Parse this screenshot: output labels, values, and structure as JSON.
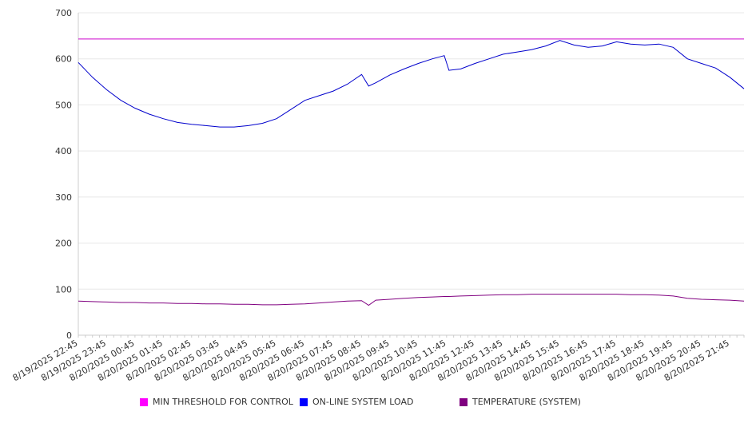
{
  "chart_data": {
    "type": "line",
    "title": "",
    "xlabel": "",
    "ylabel": "",
    "ylim": [
      0,
      700
    ],
    "yticks": [
      0,
      100,
      200,
      300,
      400,
      500,
      600,
      700
    ],
    "grid": true,
    "legend_position": "bottom",
    "x_tick_labels": [
      "8/19/2025 22:45",
      "8/19/2025 23:45",
      "8/20/2025 00:45",
      "8/20/2025 01:45",
      "8/20/2025 02:45",
      "8/20/2025 03:45",
      "8/20/2025 04:45",
      "8/20/2025 05:45",
      "8/20/2025 06:45",
      "8/20/2025 07:45",
      "8/20/2025 08:45",
      "8/20/2025 09:45",
      "8/20/2025 10:45",
      "8/20/2025 11:45",
      "8/20/2025 12:45",
      "8/20/2025 13:45",
      "8/20/2025 14:45",
      "8/20/2025 15:45",
      "8/20/2025 16:45",
      "8/20/2025 17:45",
      "8/20/2025 18:45",
      "8/20/2025 19:45",
      "8/20/2025 20:45",
      "8/20/2025 21:45"
    ],
    "x": [
      "8/19/2025 22:45",
      "8/19/2025 23:15",
      "8/19/2025 23:45",
      "8/20/2025 00:15",
      "8/20/2025 00:45",
      "8/20/2025 01:15",
      "8/20/2025 01:45",
      "8/20/2025 02:15",
      "8/20/2025 02:45",
      "8/20/2025 03:15",
      "8/20/2025 03:45",
      "8/20/2025 04:15",
      "8/20/2025 04:45",
      "8/20/2025 05:15",
      "8/20/2025 05:45",
      "8/20/2025 06:15",
      "8/20/2025 06:45",
      "8/20/2025 07:15",
      "8/20/2025 07:45",
      "8/20/2025 08:15",
      "8/20/2025 08:45",
      "8/20/2025 09:00",
      "8/20/2025 09:15",
      "8/20/2025 09:45",
      "8/20/2025 10:15",
      "8/20/2025 10:45",
      "8/20/2025 11:15",
      "8/20/2025 11:40",
      "8/20/2025 11:50",
      "8/20/2025 12:15",
      "8/20/2025 12:45",
      "8/20/2025 13:15",
      "8/20/2025 13:45",
      "8/20/2025 14:15",
      "8/20/2025 14:45",
      "8/20/2025 15:15",
      "8/20/2025 15:45",
      "8/20/2025 16:15",
      "8/20/2025 16:45",
      "8/20/2025 17:15",
      "8/20/2025 17:45",
      "8/20/2025 18:15",
      "8/20/2025 18:45",
      "8/20/2025 19:15",
      "8/20/2025 19:45",
      "8/20/2025 20:15",
      "8/20/2025 20:45",
      "8/20/2025 21:15",
      "8/20/2025 21:45",
      "8/20/2025 22:15"
    ],
    "series": [
      {
        "name": "MIN THRESHOLD FOR CONTROL",
        "color": "#cc00cc",
        "values": [
          643,
          643,
          643,
          643,
          643,
          643,
          643,
          643,
          643,
          643,
          643,
          643,
          643,
          643,
          643,
          643,
          643,
          643,
          643,
          643,
          643,
          643,
          643,
          643,
          643,
          643,
          643,
          643,
          643,
          643,
          643,
          643,
          643,
          643,
          643,
          643,
          643,
          643,
          643,
          643,
          643,
          643,
          643,
          643,
          643,
          643,
          643,
          643,
          643,
          643
        ]
      },
      {
        "name": "ON-LINE SYSTEM LOAD",
        "color": "#0000cc",
        "values": [
          592,
          560,
          533,
          510,
          493,
          480,
          470,
          462,
          458,
          455,
          452,
          452,
          455,
          460,
          470,
          490,
          510,
          520,
          530,
          545,
          566,
          541,
          548,
          565,
          578,
          590,
          600,
          607,
          575,
          578,
          590,
          600,
          610,
          615,
          620,
          628,
          640,
          630,
          625,
          628,
          637,
          632,
          630,
          632,
          625,
          600,
          590,
          580,
          560,
          535
        ]
      },
      {
        "name": "TEMPERATURE (SYSTEM)",
        "color": "#800080",
        "values": [
          74,
          73,
          72,
          71,
          71,
          70,
          70,
          69,
          69,
          68,
          68,
          67,
          67,
          66,
          66,
          67,
          68,
          70,
          72,
          74,
          75,
          65,
          76,
          78,
          80,
          82,
          83,
          84,
          84,
          85,
          86,
          87,
          88,
          88,
          89,
          89,
          89,
          89,
          89,
          89,
          89,
          88,
          88,
          87,
          85,
          80,
          78,
          77,
          76,
          74
        ]
      }
    ]
  }
}
